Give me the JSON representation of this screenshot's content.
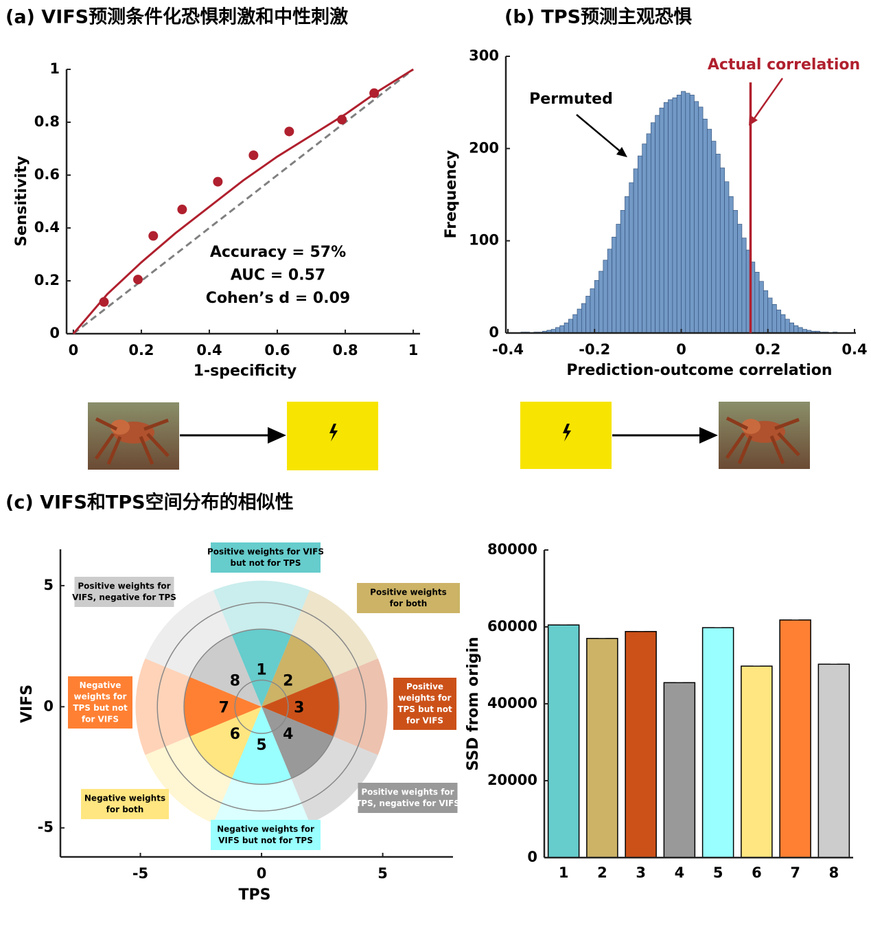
{
  "chart_data": [
    {
      "type": "scatter",
      "title": "(a) VIFS预测条件化恐惧刺激和中性刺激",
      "xlabel": "1-specificity",
      "ylabel": "Sensitivity",
      "x": [
        0.09,
        0.19,
        0.235,
        0.32,
        0.425,
        0.53,
        0.635,
        0.79,
        0.885
      ],
      "values": [
        0.12,
        0.205,
        0.37,
        0.47,
        0.575,
        0.675,
        0.765,
        0.81,
        0.91
      ],
      "color": "#b0202e",
      "curve": {
        "x": [
          0,
          0.1,
          0.2,
          0.3,
          0.4,
          0.5,
          0.6,
          0.7,
          0.8,
          0.9,
          1
        ],
        "values": [
          0,
          0.15,
          0.27,
          0.38,
          0.48,
          0.58,
          0.67,
          0.75,
          0.83,
          0.92,
          1
        ],
        "color": "#b0202e"
      },
      "reference_color": "#808080",
      "annotations": [
        "Accuracy = 57%",
        "AUC = 0.57",
        "Cohen’s d = 0.09"
      ],
      "xlim": [
        -0.02,
        1.02
      ],
      "ylim": [
        0,
        1
      ],
      "xticks": [
        0,
        0.2,
        0.4,
        0.6,
        0.8,
        1
      ],
      "yticks": [
        0,
        0.2,
        0.4,
        0.6,
        0.8,
        1
      ]
    },
    {
      "type": "histogram",
      "title": "(b) TPS预测主观恐惧",
      "xlabel": "Prediction-outcome correlation",
      "ylabel": "Frequency",
      "bins": [
        -0.38,
        -0.37,
        -0.36,
        -0.35,
        -0.34,
        -0.33,
        -0.32,
        -0.31,
        -0.3,
        -0.29,
        -0.28,
        -0.27,
        -0.26,
        -0.25,
        -0.24,
        -0.23,
        -0.22,
        -0.21,
        -0.2,
        -0.19,
        -0.18,
        -0.17,
        -0.16,
        -0.15,
        -0.14,
        -0.13,
        -0.12,
        -0.11,
        -0.1,
        -0.09,
        -0.08,
        -0.07,
        -0.06,
        -0.05,
        -0.04,
        -0.03,
        -0.02,
        -0.01,
        0,
        0.01,
        0.02,
        0.03,
        0.04,
        0.05,
        0.06,
        0.07,
        0.08,
        0.09,
        0.1,
        0.11,
        0.12,
        0.13,
        0.14,
        0.15,
        0.16,
        0.17,
        0.18,
        0.19,
        0.2,
        0.21,
        0.22,
        0.23,
        0.24,
        0.25,
        0.26,
        0.27,
        0.28,
        0.29,
        0.3,
        0.31,
        0.32,
        0.33,
        0.34,
        0.35,
        0.36,
        0.37,
        0.38
      ],
      "counts": [
        0,
        1,
        1,
        0,
        1,
        1,
        2,
        3,
        4,
        6,
        8,
        11,
        15,
        20,
        26,
        32,
        40,
        48,
        57,
        67,
        79,
        91,
        104,
        118,
        133,
        148,
        163,
        178,
        192,
        205,
        216,
        228,
        236,
        244,
        250,
        253,
        255,
        258,
        262,
        260,
        258,
        251,
        245,
        232,
        221,
        208,
        194,
        179,
        164,
        148,
        133,
        118,
        103,
        90,
        77,
        66,
        56,
        46,
        38,
        31,
        25,
        20,
        15,
        11,
        8,
        6,
        4,
        3,
        2,
        2,
        1,
        1,
        0,
        1,
        0,
        0
      ],
      "color": "#7399c6",
      "actual_correlation": 0.16,
      "actual_color": "#b0202e",
      "actual_label": "Actual correlation",
      "permuted_label": "Permuted",
      "xlim": [
        -0.4,
        0.4
      ],
      "ylim": [
        0,
        300
      ],
      "xticks": [
        -0.4,
        -0.2,
        0,
        0.2,
        0.4
      ],
      "yticks": [
        0,
        100,
        200,
        300
      ]
    },
    {
      "type": "sector",
      "title": "(c) VIFS和TPS空间分布的相似性",
      "xlabel": "TPS",
      "ylabel": "VIFS",
      "sectors": [
        "1",
        "2",
        "3",
        "4",
        "5",
        "6",
        "7",
        "8"
      ],
      "colors": [
        "#66cccc",
        "#ccb366",
        "#cc5119",
        "#999999",
        "#99ffff",
        "#ffe680",
        "#ff8033",
        "#cccccc"
      ],
      "circle_radii": [
        1.1,
        3.2,
        4.3
      ],
      "boxes": [
        [
          "Positive weights for VIFS",
          "but not for TPS"
        ],
        [
          "Positive weights",
          "for both"
        ],
        [
          "Positive",
          "weights for",
          "TPS but not",
          "for VIFS"
        ],
        [
          "Positive weights for",
          "TPS, negative for VIFS"
        ],
        [
          "Negative weights for",
          "VIFS but not for TPS"
        ],
        [
          "Negative weights",
          "for both"
        ],
        [
          "Negative",
          "weights for",
          "TPS but not",
          "for VIFS"
        ],
        [
          "Positive weights for",
          "VIFS, negative for TPS"
        ]
      ],
      "box_text_colors": [
        "#000000",
        "#000000",
        "#ffffff",
        "#ffffff",
        "#000000",
        "#000000",
        "#ffffff",
        "#000000"
      ],
      "xlim": [
        -8.3,
        7.9
      ],
      "ylim": [
        -6.2,
        6.5
      ],
      "xticks": [
        -5,
        0,
        5
      ],
      "yticks": [
        -5,
        0,
        5
      ]
    },
    {
      "type": "bar",
      "ylabel": "SSD from origin",
      "categories": [
        "1",
        "2",
        "3",
        "4",
        "5",
        "6",
        "7",
        "8"
      ],
      "values": [
        60500,
        57000,
        58800,
        45500,
        59800,
        49800,
        61800,
        50300
      ],
      "errors": [
        300,
        300,
        300,
        300,
        300,
        300,
        300,
        300
      ],
      "colors": [
        "#66cccc",
        "#ccb366",
        "#cc5119",
        "#999999",
        "#99ffff",
        "#ffe680",
        "#ff8033",
        "#cccccc"
      ],
      "ylim": [
        0,
        80000
      ],
      "yticks": [
        0,
        20000,
        40000,
        60000,
        80000
      ]
    }
  ]
}
